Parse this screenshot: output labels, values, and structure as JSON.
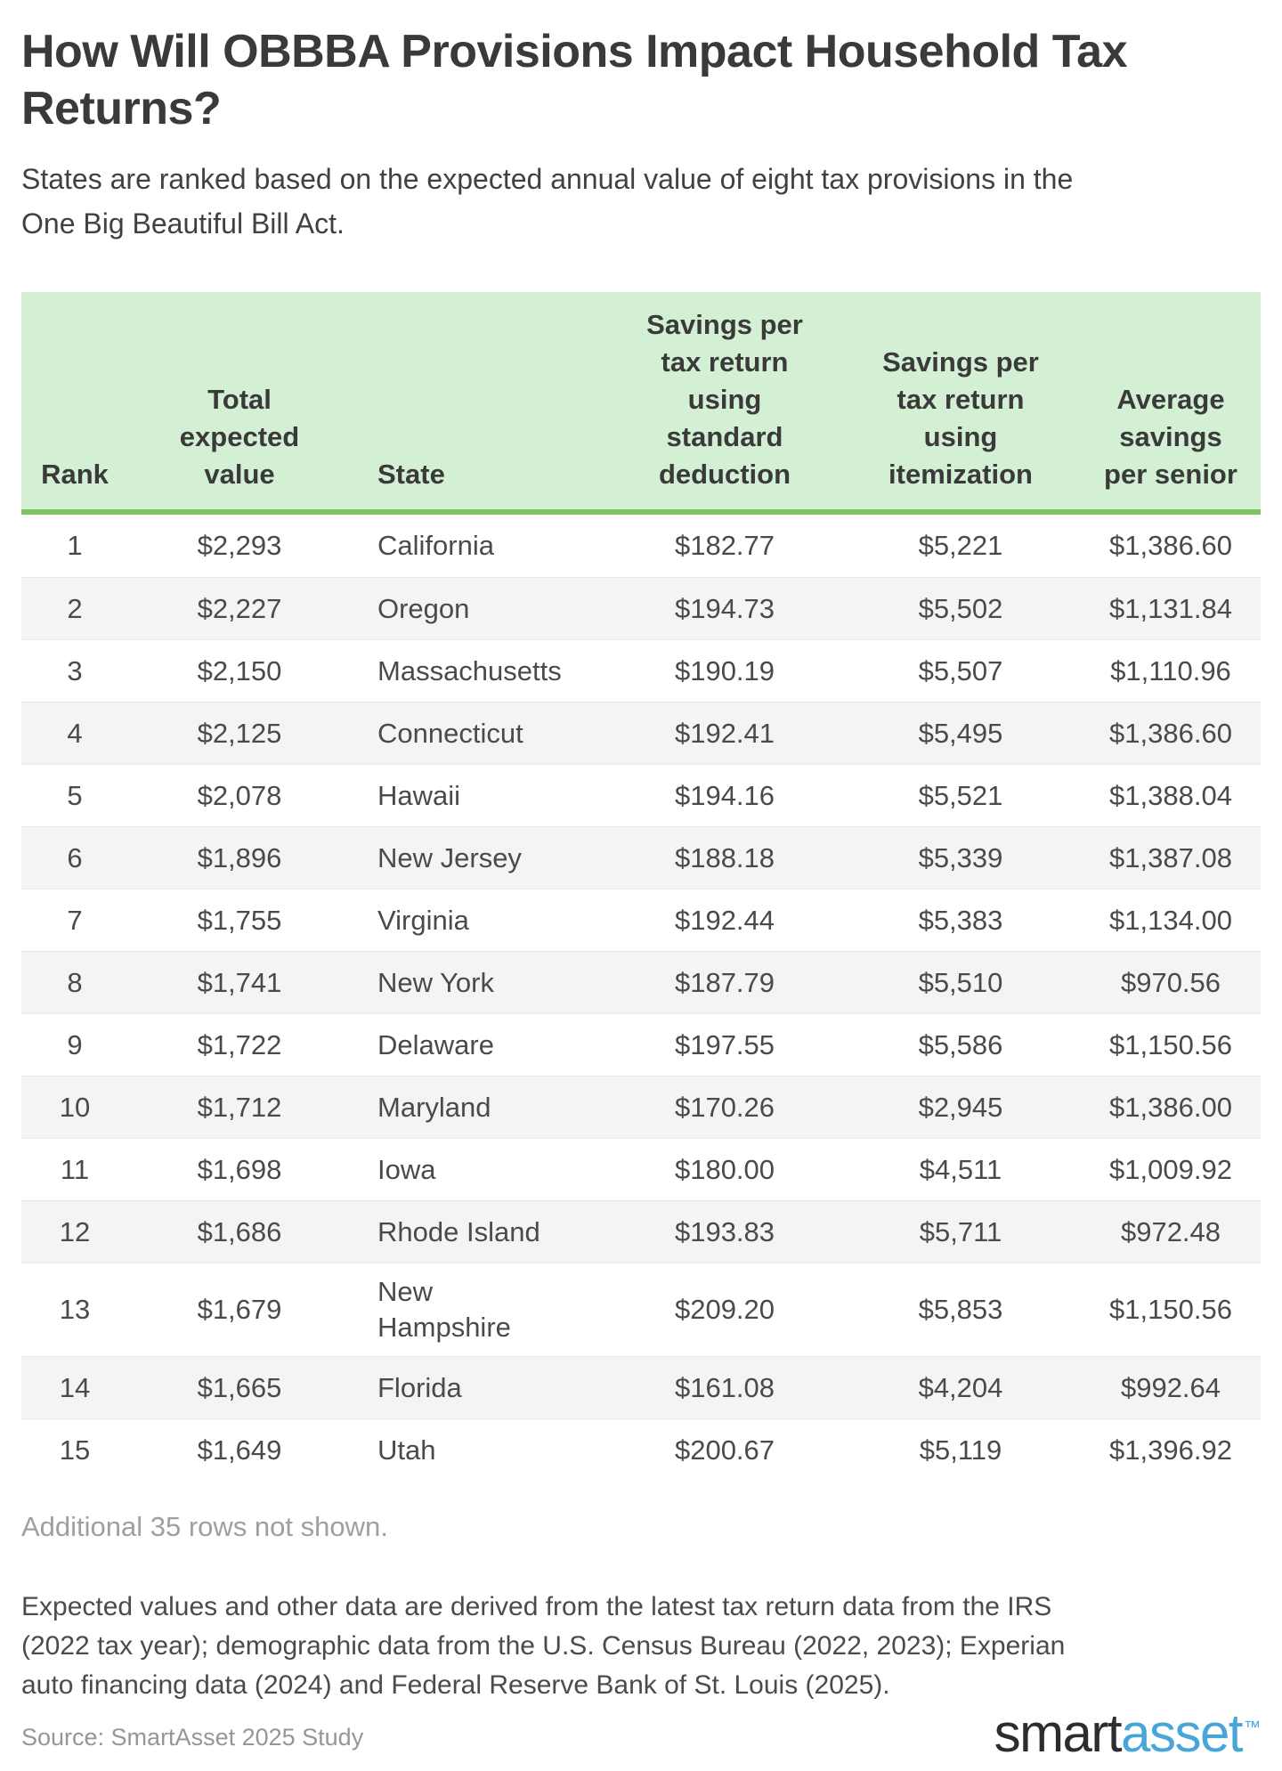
{
  "chart_data": {
    "type": "table",
    "title": "How Will OBBBA Provisions Impact Household Tax\nReturns?",
    "subtitle": "States are ranked based on the expected annual value of eight tax provisions in the\nOne Big Beautiful Bill Act.",
    "columns": [
      "Rank",
      "Total expected value",
      "State",
      "Savings per tax return using standard deduction",
      "Savings per tax return using itemization",
      "Average savings per senior"
    ],
    "header_display": [
      "Rank",
      "Total\nexpected\nvalue",
      "State",
      "Savings per\ntax return\nusing\nstandard\ndeduction",
      "Savings per\ntax return\nusing\nitemization",
      "Average\nsavings\nper senior"
    ],
    "rows": [
      [
        "1",
        "$2,293",
        "California",
        "$182.77",
        "$5,221",
        "$1,386.60"
      ],
      [
        "2",
        "$2,227",
        "Oregon",
        "$194.73",
        "$5,502",
        "$1,131.84"
      ],
      [
        "3",
        "$2,150",
        "Massachusetts",
        "$190.19",
        "$5,507",
        "$1,110.96"
      ],
      [
        "4",
        "$2,125",
        "Connecticut",
        "$192.41",
        "$5,495",
        "$1,386.60"
      ],
      [
        "5",
        "$2,078",
        "Hawaii",
        "$194.16",
        "$5,521",
        "$1,388.04"
      ],
      [
        "6",
        "$1,896",
        "New Jersey",
        "$188.18",
        "$5,339",
        "$1,387.08"
      ],
      [
        "7",
        "$1,755",
        "Virginia",
        "$192.44",
        "$5,383",
        "$1,134.00"
      ],
      [
        "8",
        "$1,741",
        "New York",
        "$187.79",
        "$5,510",
        "$970.56"
      ],
      [
        "9",
        "$1,722",
        "Delaware",
        "$197.55",
        "$5,586",
        "$1,150.56"
      ],
      [
        "10",
        "$1,712",
        "Maryland",
        "$170.26",
        "$2,945",
        "$1,386.00"
      ],
      [
        "11",
        "$1,698",
        "Iowa",
        "$180.00",
        "$4,511",
        "$1,009.92"
      ],
      [
        "12",
        "$1,686",
        "Rhode Island",
        "$193.83",
        "$5,711",
        "$972.48"
      ],
      [
        "13",
        "$1,679",
        "New Hampshire",
        "$209.20",
        "$5,853",
        "$1,150.56"
      ],
      [
        "14",
        "$1,665",
        "Florida",
        "$161.08",
        "$4,204",
        "$992.64"
      ],
      [
        "15",
        "$1,649",
        "Utah",
        "$200.67",
        "$5,119",
        "$1,396.92"
      ]
    ],
    "note": "Additional 35 rows not shown.",
    "footnote": "Expected values and other data are derived from the latest tax return data from the IRS\n(2022 tax year); demographic data from the U.S. Census Bureau (2022, 2023); Experian\nauto financing data (2024) and Federal Reserve Bank of St. Louis (2025).",
    "source": "Source: SmartAsset 2025 Study",
    "layout_hints": {
      "header_bg": "#d4f0d4",
      "header_border_green": "#7ec262",
      "alt_row_bg": "#f4f4f4",
      "grid": "horizontal row dividers only"
    }
  },
  "branding": {
    "logo_dark": "smart",
    "logo_blue": "asset",
    "trademark": "™",
    "logo_blue_color": "#47a5d7",
    "logo_dark_color": "#2d2d2d"
  }
}
